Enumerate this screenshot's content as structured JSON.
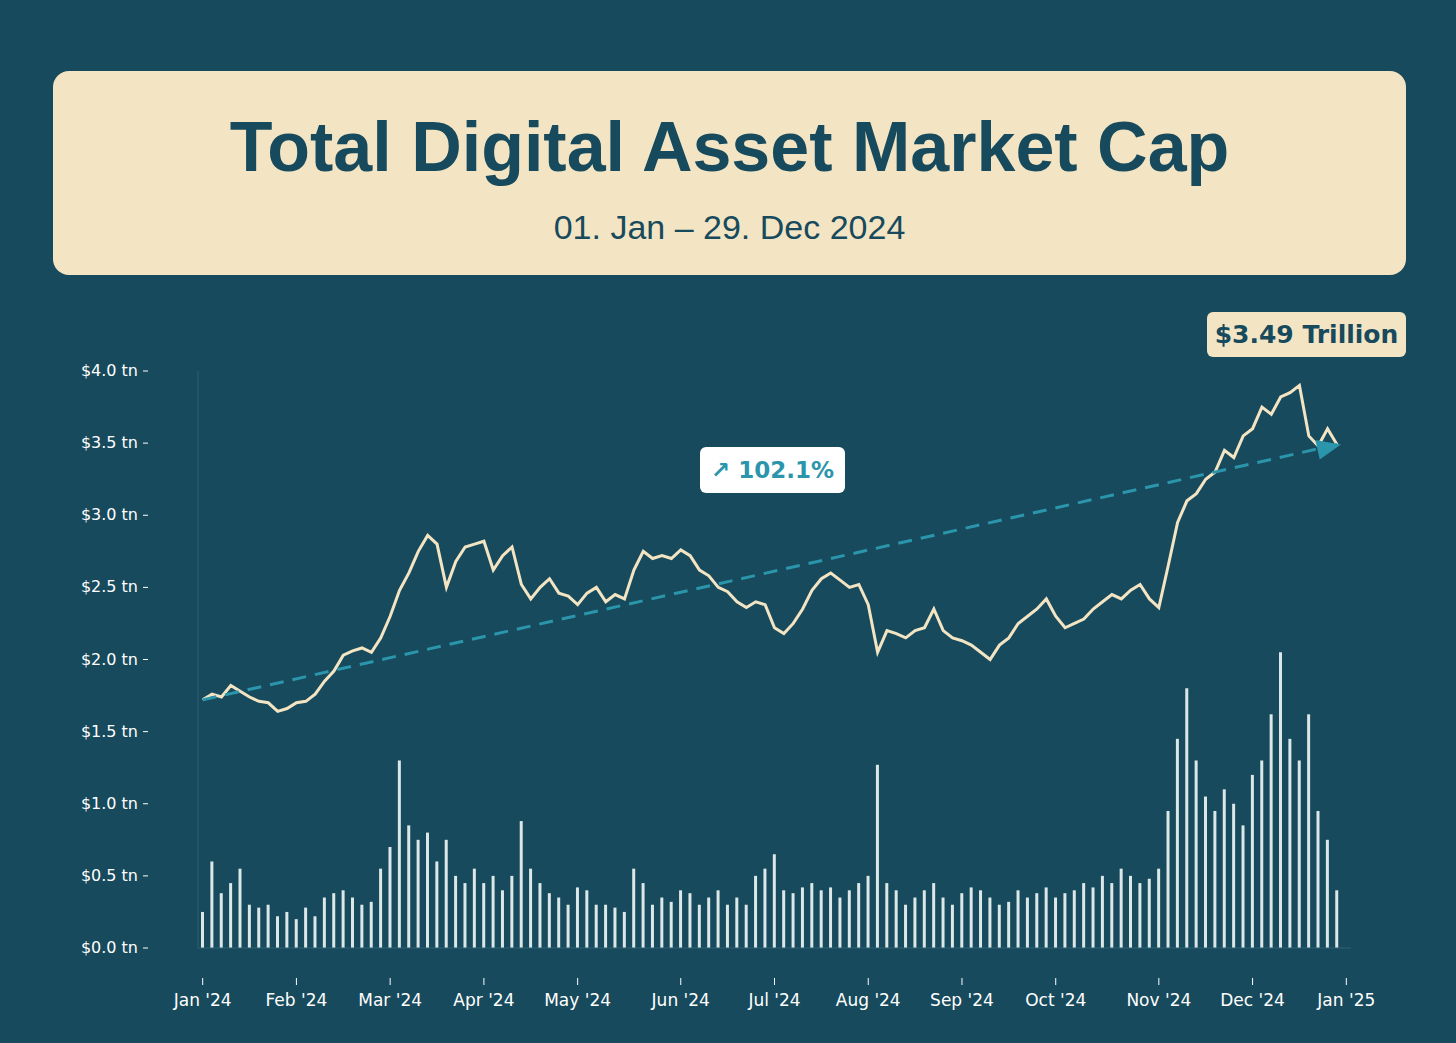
{
  "chart_data": {
    "type": "line",
    "title": "Total Digital Asset Market Cap",
    "subtitle": "01. Jan – 29. Dec 2024",
    "categories": [
      "Jan '24",
      null,
      null,
      null,
      null,
      null,
      null,
      null,
      null,
      null,
      "Feb '24",
      null,
      null,
      null,
      null,
      null,
      null,
      null,
      null,
      null,
      "Mar '24",
      null,
      null,
      null,
      null,
      null,
      null,
      null,
      null,
      null,
      "Apr '24",
      null,
      null,
      null,
      null,
      null,
      null,
      null,
      null,
      null,
      "May '24",
      null,
      null,
      null,
      null,
      null,
      null,
      null,
      null,
      null,
      null,
      "Jun '24",
      null,
      null,
      null,
      null,
      null,
      null,
      null,
      null,
      null,
      "Jul '24",
      null,
      null,
      null,
      null,
      null,
      null,
      null,
      null,
      null,
      "Aug '24",
      null,
      null,
      null,
      null,
      null,
      null,
      null,
      null,
      null,
      "Sep '24",
      null,
      null,
      null,
      null,
      null,
      null,
      null,
      null,
      null,
      "Oct '24",
      null,
      null,
      null,
      null,
      null,
      null,
      null,
      null,
      null,
      null,
      "Nov '24",
      null,
      null,
      null,
      null,
      null,
      null,
      null,
      null,
      null,
      "Dec '24",
      null,
      null,
      null,
      null,
      null,
      null,
      null,
      null,
      null,
      "Jan '25"
    ],
    "series": [
      {
        "type": "bar",
        "color": "#dce8e8",
        "values": [
          0.25,
          0.6,
          0.38,
          0.45,
          0.55,
          0.3,
          0.28,
          0.3,
          0.22,
          0.25,
          0.2,
          0.28,
          0.22,
          0.35,
          0.38,
          0.4,
          0.35,
          0.3,
          0.32,
          0.55,
          0.7,
          1.3,
          0.85,
          0.75,
          0.8,
          0.6,
          0.75,
          0.5,
          0.45,
          0.55,
          0.45,
          0.5,
          0.4,
          0.5,
          0.88,
          0.55,
          0.45,
          0.38,
          0.35,
          0.3,
          0.42,
          0.4,
          0.3,
          0.3,
          0.28,
          0.25,
          0.55,
          0.45,
          0.3,
          0.35,
          0.32,
          0.4,
          0.38,
          0.3,
          0.35,
          0.4,
          0.3,
          0.35,
          0.3,
          0.5,
          0.55,
          0.65,
          0.4,
          0.38,
          0.42,
          0.45,
          0.4,
          0.42,
          0.35,
          0.4,
          0.45,
          0.5,
          1.27,
          0.45,
          0.4,
          0.3,
          0.35,
          0.4,
          0.45,
          0.35,
          0.3,
          0.38,
          0.42,
          0.4,
          0.35,
          0.3,
          0.32,
          0.4,
          0.35,
          0.38,
          0.42,
          0.35,
          0.38,
          0.4,
          0.45,
          0.42,
          0.5,
          0.45,
          0.55,
          0.5,
          0.45,
          0.48,
          0.55,
          0.95,
          1.45,
          1.8,
          1.3,
          1.05,
          0.95,
          1.1,
          1.0,
          0.85,
          1.2,
          1.3,
          1.62,
          2.05,
          1.45,
          1.3,
          1.62,
          0.95,
          0.75,
          0.4,
          null
        ]
      },
      {
        "color": "#f3e5c3",
        "values": [
          1.72,
          1.76,
          1.74,
          1.82,
          1.78,
          1.74,
          1.71,
          1.7,
          1.64,
          1.66,
          1.7,
          1.71,
          1.76,
          1.85,
          1.92,
          2.03,
          2.06,
          2.08,
          2.05,
          2.15,
          2.3,
          2.48,
          2.6,
          2.75,
          2.86,
          2.8,
          2.5,
          2.68,
          2.78,
          2.8,
          2.82,
          2.62,
          2.72,
          2.78,
          2.52,
          2.42,
          2.5,
          2.56,
          2.46,
          2.44,
          2.38,
          2.46,
          2.5,
          2.4,
          2.45,
          2.42,
          2.62,
          2.75,
          2.7,
          2.72,
          2.7,
          2.76,
          2.72,
          2.62,
          2.58,
          2.5,
          2.47,
          2.4,
          2.36,
          2.4,
          2.38,
          2.22,
          2.18,
          2.25,
          2.35,
          2.48,
          2.56,
          2.6,
          2.55,
          2.5,
          2.52,
          2.38,
          2.05,
          2.2,
          2.18,
          2.15,
          2.2,
          2.22,
          2.35,
          2.2,
          2.15,
          2.13,
          2.1,
          2.05,
          2.0,
          2.1,
          2.15,
          2.25,
          2.3,
          2.35,
          2.42,
          2.3,
          2.22,
          2.25,
          2.28,
          2.35,
          2.4,
          2.45,
          2.42,
          2.48,
          2.52,
          2.42,
          2.36,
          2.65,
          2.95,
          3.1,
          3.15,
          3.25,
          3.3,
          3.45,
          3.4,
          3.55,
          3.6,
          3.75,
          3.7,
          3.82,
          3.85,
          3.9,
          3.55,
          3.48,
          3.6,
          3.49,
          null
        ]
      }
    ],
    "trend": {
      "start": 1.72,
      "end": 3.49,
      "label": "↗ 102.1%",
      "color": "#2b95ab",
      "line_style": "dashed",
      "marker": "arrow"
    },
    "annotations": [
      "$3.49 Trillion"
    ],
    "ylim": [
      0,
      4
    ],
    "yticks": [
      {
        "value": 0,
        "label": "$0.0 tn"
      },
      {
        "value": 0.5,
        "label": "$0.5 tn"
      },
      {
        "value": 1,
        "label": "$1.0 tn"
      },
      {
        "value": 1.5,
        "label": "$1.5 tn"
      },
      {
        "value": 2,
        "label": "$2.0 tn"
      },
      {
        "value": 2.5,
        "label": "$2.5 tn"
      },
      {
        "value": 3,
        "label": "$3.0 tn"
      },
      {
        "value": 3.5,
        "label": "$3.5 tn"
      },
      {
        "value": 4,
        "label": "$4.0 tn"
      }
    ],
    "grid": false
  }
}
